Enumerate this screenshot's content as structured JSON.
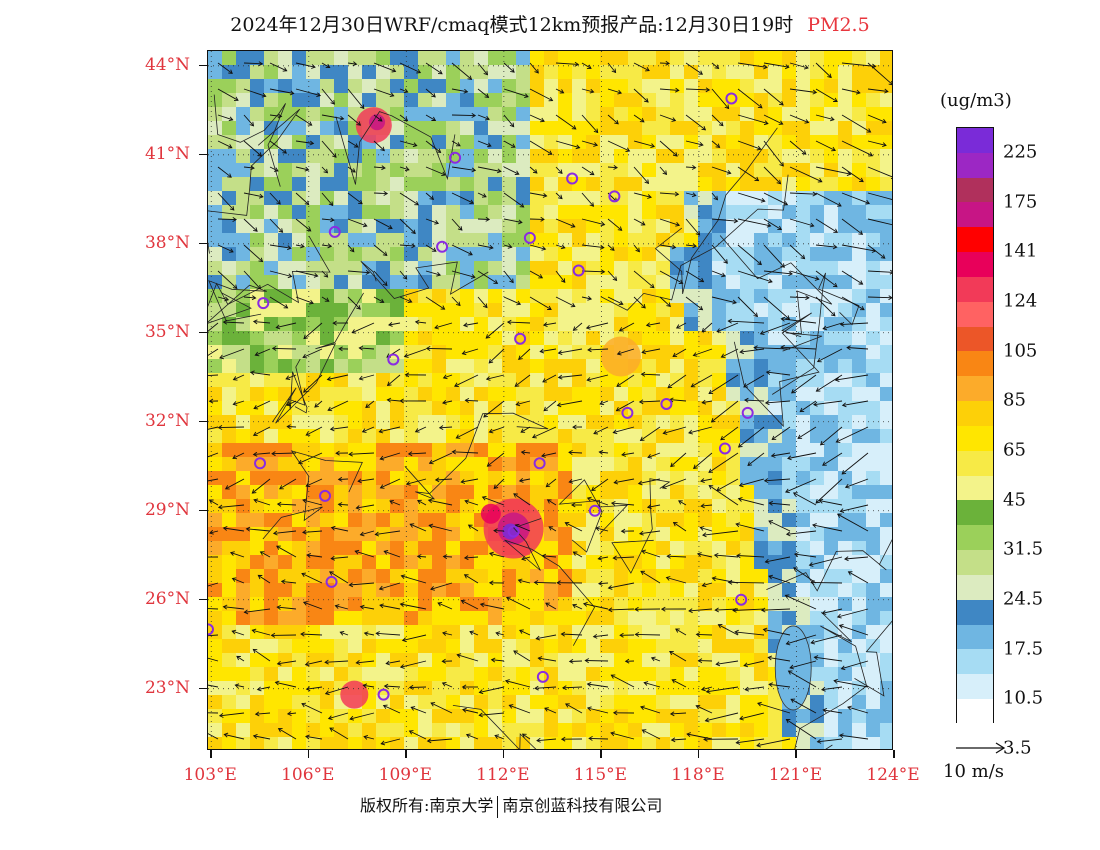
{
  "title": {
    "main": "2024年12月30日WRF/cmaq模式12km预报产品:12月30日19时",
    "pollutant": "PM2.5"
  },
  "map": {
    "lat_labels": [
      "44°N",
      "41°N",
      "38°N",
      "35°N",
      "32°N",
      "29°N",
      "26°N",
      "23°N"
    ],
    "lat_values": [
      44,
      41,
      38,
      35,
      32,
      29,
      26,
      23
    ],
    "lon_labels": [
      "103°E",
      "106°E",
      "109°E",
      "112°E",
      "115°E",
      "118°E",
      "121°E",
      "124°E"
    ],
    "lon_values": [
      103,
      106,
      109,
      112,
      115,
      118,
      121,
      124
    ],
    "extent": {
      "lon_min": 102.9,
      "lon_max": 124.0,
      "lat_min": 20.9,
      "lat_max": 44.5
    },
    "sea_color": "#d6eef8",
    "city_marker_color": "#8a2be2",
    "city_markers": [
      [
        119.0,
        42.9
      ],
      [
        110.5,
        40.9
      ],
      [
        114.1,
        40.2
      ],
      [
        115.4,
        39.6
      ],
      [
        106.8,
        38.4
      ],
      [
        110.1,
        37.9
      ],
      [
        112.8,
        38.2
      ],
      [
        114.3,
        37.1
      ],
      [
        104.6,
        36.0
      ],
      [
        112.5,
        34.8
      ],
      [
        108.6,
        34.1
      ],
      [
        117.0,
        32.6
      ],
      [
        115.8,
        32.3
      ],
      [
        119.5,
        32.3
      ],
      [
        104.5,
        30.6
      ],
      [
        113.1,
        30.6
      ],
      [
        118.8,
        31.1
      ],
      [
        106.5,
        29.5
      ],
      [
        114.8,
        29.0
      ],
      [
        112.3,
        28.3
      ],
      [
        106.7,
        26.6
      ],
      [
        102.9,
        25.0
      ],
      [
        119.3,
        26.0
      ],
      [
        108.3,
        22.8
      ],
      [
        113.2,
        23.4
      ]
    ]
  },
  "legend": {
    "unit": "(ug/m3)",
    "colors": [
      "#ffffff",
      "#d7effa",
      "#a6dcf3",
      "#6fb6e2",
      "#3f87c4",
      "#dcebc0",
      "#c4df88",
      "#9bd05a",
      "#6bb23a",
      "#f3f38a",
      "#f7ea46",
      "#ffe600",
      "#fdd008",
      "#fcab2a",
      "#f98614",
      "#ec5628",
      "#ff6262",
      "#f23a58",
      "#e8005a",
      "#ff0000",
      "#c71585",
      "#b0305c",
      "#9c27c4",
      "#7a2bd8"
    ],
    "labels": [
      "225",
      "175",
      "141",
      "124",
      "105",
      "85",
      "65",
      "45",
      "31.5",
      "24.5",
      "17.5",
      "10.5",
      "3.5"
    ],
    "wind_ref": "10 m/s"
  },
  "footer": {
    "left": "版权所有:南京大学",
    "right": "南京创蓝科技有限公司"
  }
}
